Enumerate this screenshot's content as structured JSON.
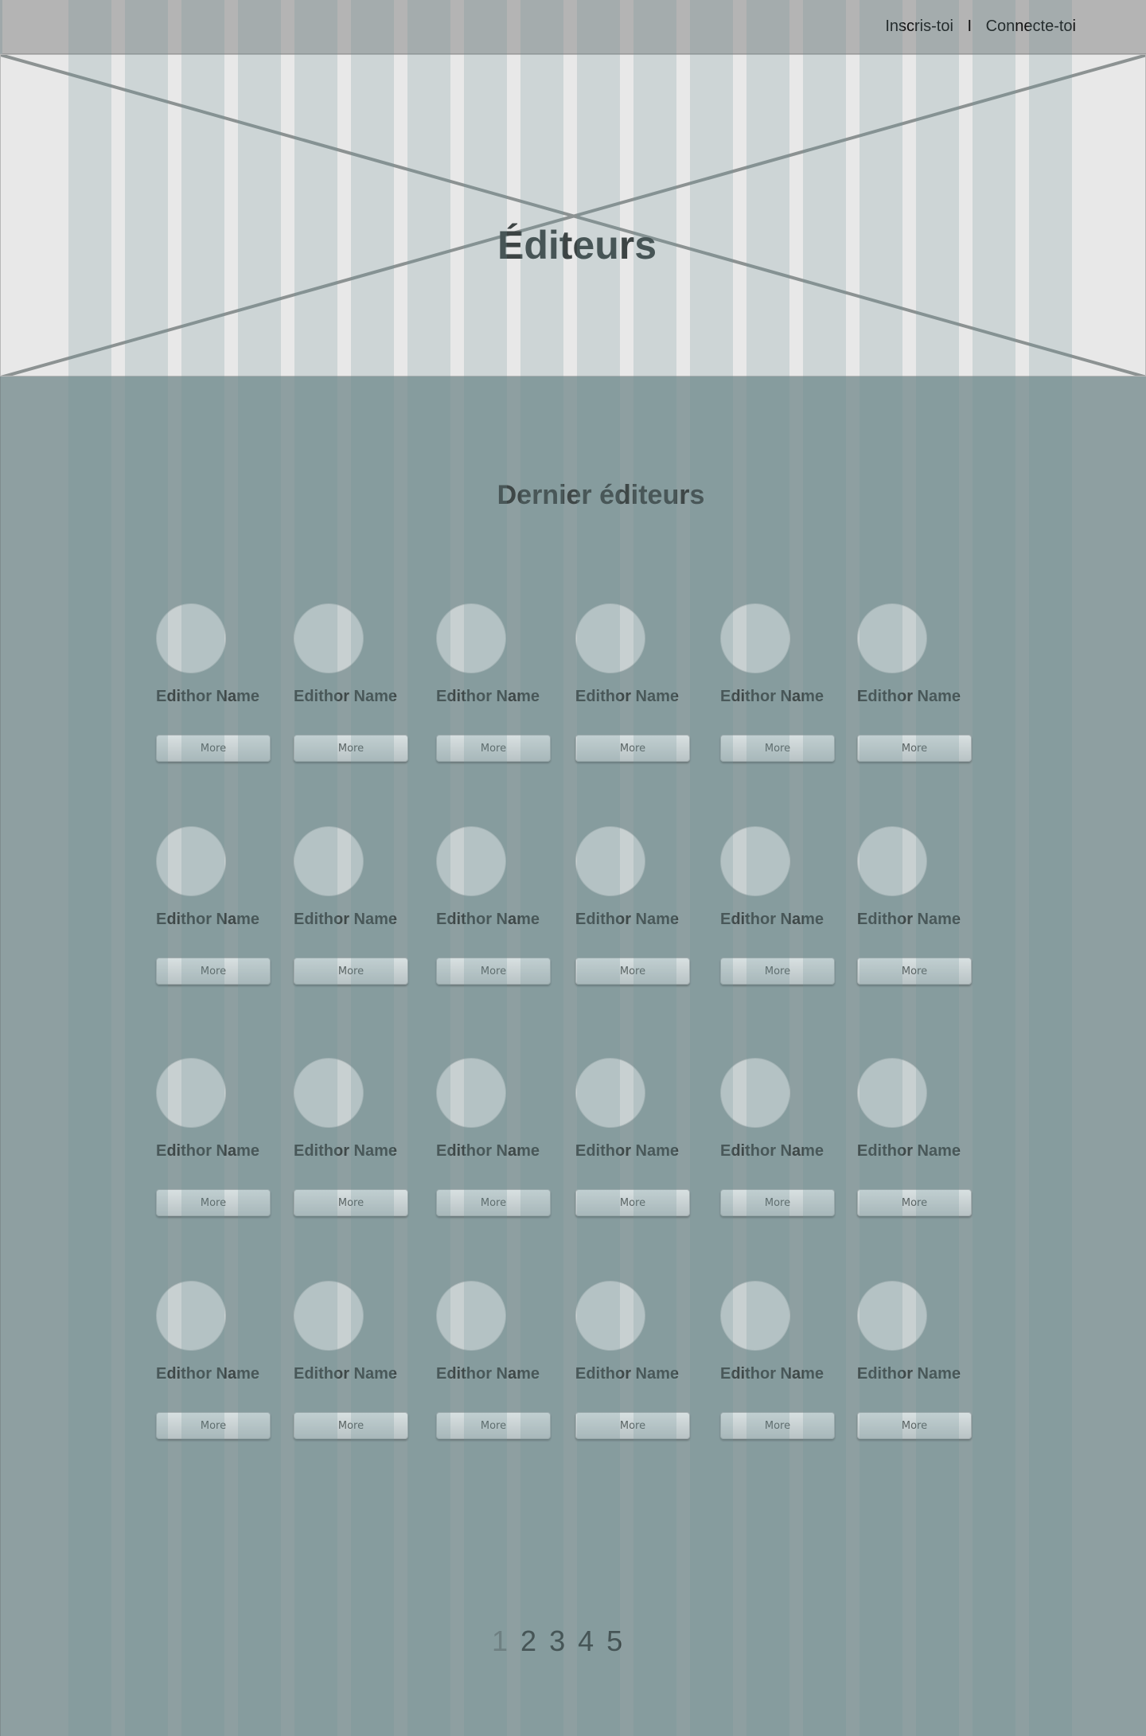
{
  "header": {
    "signup_label": "Inscris-toi",
    "separator": "I",
    "login_label": "Connecte-toi"
  },
  "hero": {
    "title": "Éditeurs"
  },
  "section": {
    "title": "Dernier éditeurs"
  },
  "editors": [
    [
      {
        "name": "Edithor Name",
        "button": "More"
      },
      {
        "name": "Edithor Name",
        "button": "More"
      },
      {
        "name": "Edithor Name",
        "button": "More"
      },
      {
        "name": "Edithor Name",
        "button": "More"
      },
      {
        "name": "Edithor Name",
        "button": "More"
      },
      {
        "name": "Edithor Name",
        "button": "More"
      }
    ],
    [
      {
        "name": "Edithor Name",
        "button": "More"
      },
      {
        "name": "Edithor Name",
        "button": "More"
      },
      {
        "name": "Edithor Name",
        "button": "More"
      },
      {
        "name": "Edithor Name",
        "button": "More"
      },
      {
        "name": "Edithor Name",
        "button": "More"
      },
      {
        "name": "Edithor Name",
        "button": "More"
      }
    ],
    [
      {
        "name": "Edithor Name",
        "button": "More"
      },
      {
        "name": "Edithor Name",
        "button": "More"
      },
      {
        "name": "Edithor Name",
        "button": "More"
      },
      {
        "name": "Edithor Name",
        "button": "More"
      },
      {
        "name": "Edithor Name",
        "button": "More"
      },
      {
        "name": "Edithor Name",
        "button": "More"
      }
    ],
    [
      {
        "name": "Edithor Name",
        "button": "More"
      },
      {
        "name": "Edithor Name",
        "button": "More"
      },
      {
        "name": "Edithor Name",
        "button": "More"
      },
      {
        "name": "Edithor Name",
        "button": "More"
      },
      {
        "name": "Edithor Name",
        "button": "More"
      },
      {
        "name": "Edithor Name",
        "button": "More"
      }
    ]
  ],
  "pagination": {
    "pages": [
      "1",
      "2",
      "3",
      "4",
      "5"
    ],
    "current": "1"
  },
  "colors": {
    "header_bg": "#b4b4b4",
    "hero_bg": "#e8e8e8",
    "main_bg": "#8e9fa1",
    "text_dark": "#3f4747"
  }
}
